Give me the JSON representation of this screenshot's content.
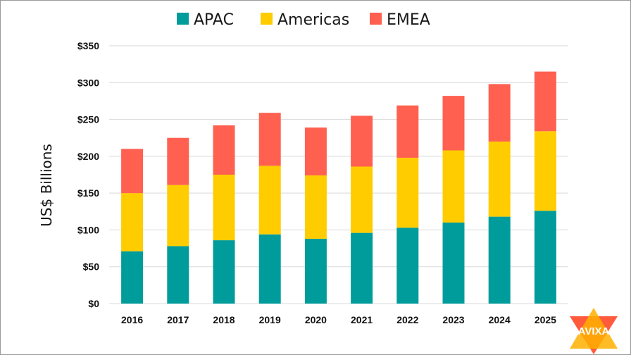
{
  "chart_data": {
    "type": "bar",
    "stacked": true,
    "categories": [
      "2016",
      "2017",
      "2018",
      "2019",
      "2020",
      "2021",
      "2022",
      "2023",
      "2024",
      "2025"
    ],
    "series": [
      {
        "name": "APAC",
        "color": "#009c9c",
        "values": [
          71,
          78,
          86,
          94,
          88,
          96,
          103,
          110,
          118,
          126
        ]
      },
      {
        "name": "Americas",
        "color": "#ffcc00",
        "values": [
          79,
          83,
          89,
          93,
          86,
          90,
          95,
          98,
          102,
          108
        ]
      },
      {
        "name": "EMEA",
        "color": "#ff6050",
        "values": [
          60,
          64,
          67,
          72,
          65,
          69,
          71,
          74,
          78,
          81
        ]
      }
    ],
    "ylabel": "US$ Billions",
    "ylim": [
      0,
      350
    ],
    "yticks": [
      0,
      50,
      100,
      150,
      200,
      250,
      300,
      350
    ],
    "ytick_labels": [
      "$0",
      "$50",
      "$100",
      "$150",
      "$200",
      "$250",
      "$300",
      "$350"
    ],
    "grid": true,
    "legend_position": "top"
  },
  "logo": {
    "text": "AVIXA",
    "colors": [
      "#ff5a3c",
      "#ffb000"
    ]
  }
}
